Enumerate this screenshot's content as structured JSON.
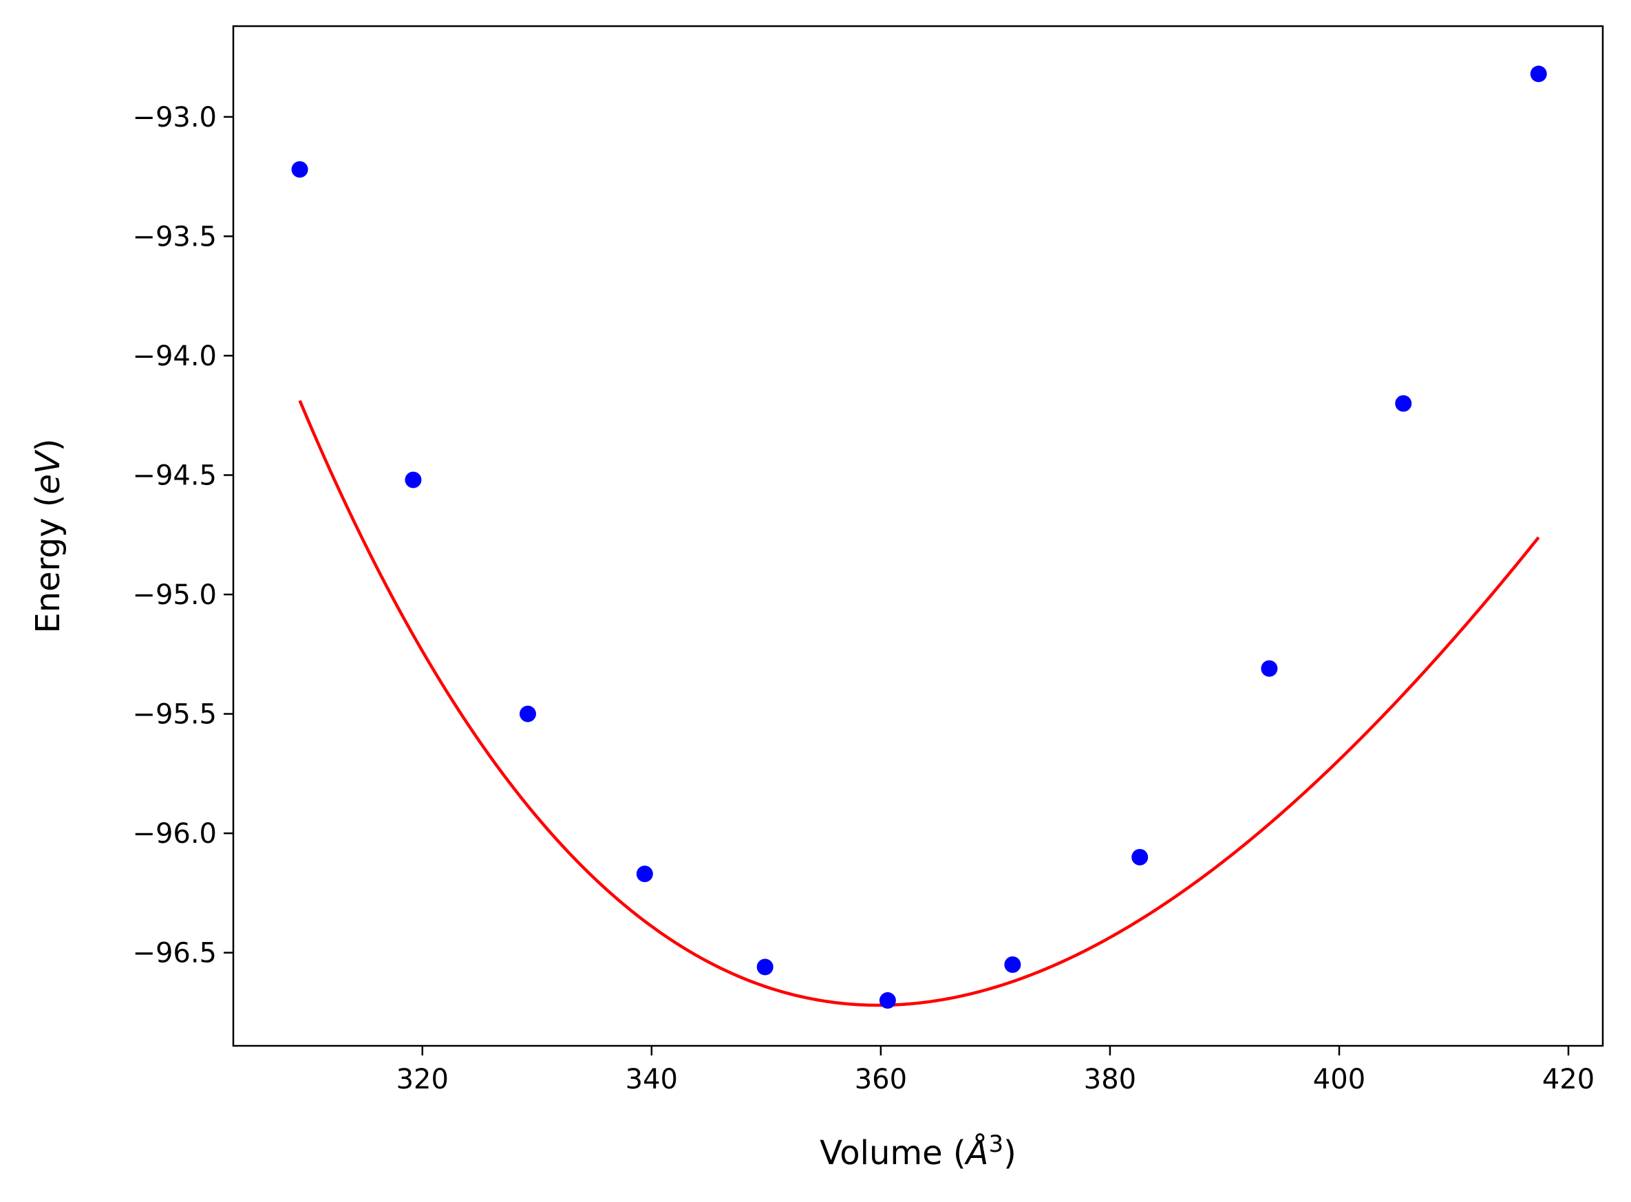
{
  "chart_data": {
    "type": "line",
    "title": "",
    "xlabel": "Volume (",
    "xlabel_symbol": "Å",
    "xlabel_sup": "3",
    "xlabel_end": ")",
    "ylabel": "Energy (",
    "ylabel_italic": "eV",
    "ylabel_end": ")",
    "xlim": [
      303.5,
      423
    ],
    "ylim": [
      -96.89,
      -92.62
    ],
    "xticks": [
      320,
      340,
      360,
      380,
      400,
      420
    ],
    "xtick_labels": [
      "320",
      "340",
      "360",
      "380",
      "400",
      "420"
    ],
    "yticks": [
      -93.0,
      -93.5,
      -94.0,
      -94.5,
      -95.0,
      -95.5,
      -96.0,
      -96.5
    ],
    "ytick_labels": [
      "−93.0",
      "−93.5",
      "−94.0",
      "−94.5",
      "−95.0",
      "−95.5",
      "−96.0",
      "−96.5"
    ],
    "grid": false,
    "legend": "none",
    "series": [
      {
        "kind": "scatter",
        "color": "#0000ff",
        "x": [
          309.3,
          319.2,
          329.2,
          339.4,
          349.9,
          360.6,
          371.5,
          382.6,
          393.9,
          405.6,
          417.4
        ],
        "y": [
          -93.22,
          -94.52,
          -95.5,
          -96.17,
          -96.56,
          -96.7,
          -96.55,
          -96.1,
          -95.31,
          -94.2,
          -92.82
        ]
      },
      {
        "kind": "line",
        "color": "#ff0000",
        "fit": "birch-murnaghan",
        "E0": -96.72,
        "V0": 359.8,
        "B0": 0.55,
        "B0_prime": 4.2,
        "x_range": [
          309.3,
          417.4
        ]
      }
    ]
  }
}
